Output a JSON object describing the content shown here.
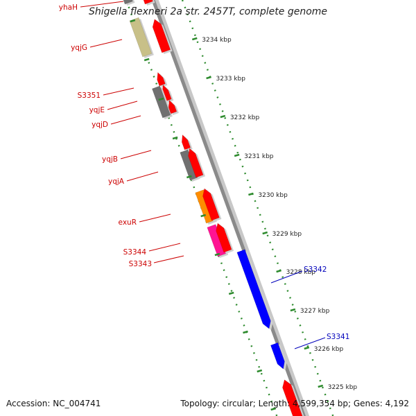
{
  "title": "Shigella flexneri 2a str. 2457T, complete genome",
  "footer": {
    "accession": "Accession: NC_004741",
    "summary": "Topology: circular; Length: 4,599,354 bp; Genes: 4,192"
  },
  "colors": {
    "backbone": "#8a8a8a",
    "ruler": "#2e8b2e",
    "reverse_label": "#cc0000",
    "forward_label": "#0000bb",
    "red": "#ff0000",
    "gray": "#707070",
    "khaki": "#c8c088",
    "orange": "#ff8c00",
    "pink": "#ff1493",
    "blue": "#0000ff"
  },
  "ruler_ticks": [
    "3234 kbp",
    "3233 kbp",
    "3232 kbp",
    "3231 kbp",
    "3230 kbp",
    "3229 kbp",
    "3228 kbp",
    "3227 kbp",
    "3226 kbp",
    "3225 kbp"
  ],
  "genes": [
    {
      "label": "yhaH",
      "strand": "reverse"
    },
    {
      "label": "yqjG",
      "strand": "reverse"
    },
    {
      "label": "S3351",
      "strand": "reverse"
    },
    {
      "label": "yqjE",
      "strand": "reverse"
    },
    {
      "label": "yqjD",
      "strand": "reverse"
    },
    {
      "label": "yqjB",
      "strand": "reverse"
    },
    {
      "label": "yqjA",
      "strand": "reverse"
    },
    {
      "label": "exuR",
      "strand": "reverse"
    },
    {
      "label": "S3344",
      "strand": "reverse"
    },
    {
      "label": "S3343",
      "strand": "reverse"
    },
    {
      "label": "S3342",
      "strand": "forward"
    },
    {
      "label": "S3341",
      "strand": "forward"
    }
  ]
}
